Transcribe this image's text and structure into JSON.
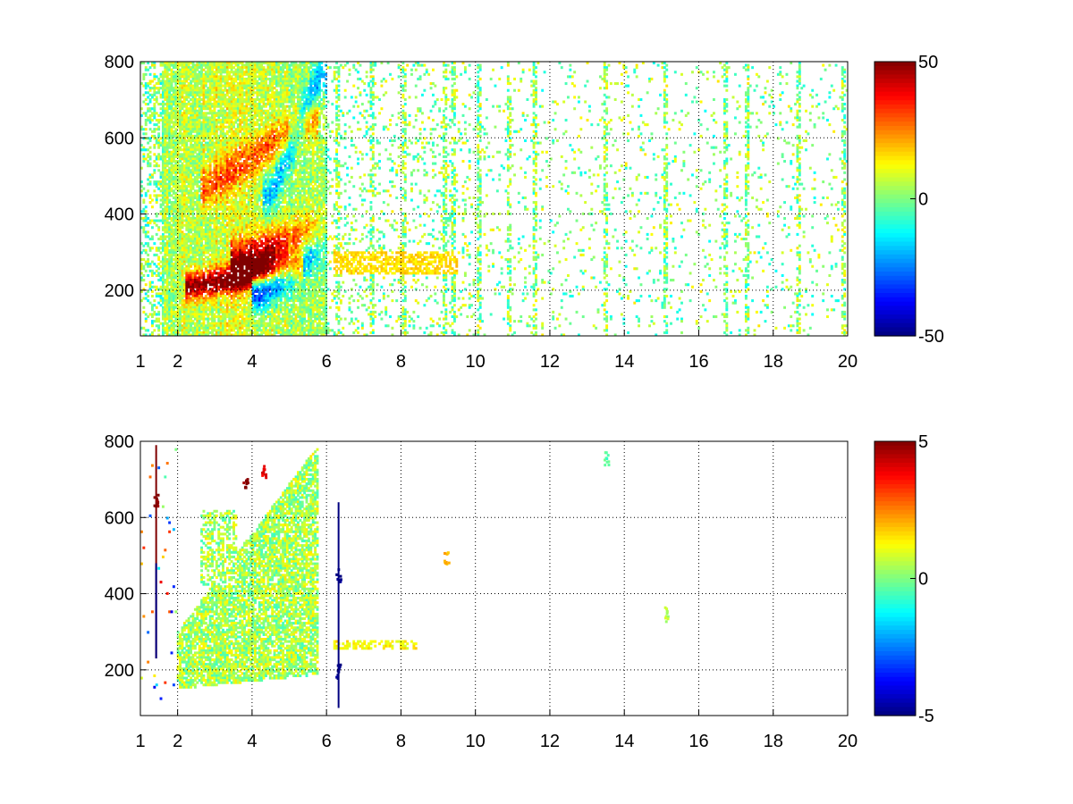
{
  "figure": {
    "background": "#ffffff"
  },
  "chart_data": [
    {
      "type": "heatmap",
      "title": "",
      "xlabel": "",
      "ylabel": "",
      "xlim": [
        1,
        20
      ],
      "ylim": [
        80,
        800
      ],
      "xticks": [
        1,
        2,
        4,
        6,
        8,
        10,
        12,
        14,
        16,
        18,
        20
      ],
      "yticks": [
        200,
        400,
        600,
        800
      ],
      "grid": true,
      "grid_style": "dotted",
      "colormap": "jet",
      "clim": [
        -50,
        50
      ],
      "colorbar": {
        "ticks": [
          50,
          0,
          -50
        ]
      },
      "features": [
        {
          "kind": "ridge",
          "x_start": 2.4,
          "x_end": 5.2,
          "y_start": 210,
          "y_end": 265,
          "value": 45,
          "spread": 25
        },
        {
          "kind": "ridge",
          "x_start": 3.6,
          "x_end": 5.8,
          "y_start": 270,
          "y_end": 340,
          "value": 40,
          "spread": 40
        },
        {
          "kind": "ridge",
          "x_start": 4.2,
          "x_end": 5.9,
          "y_start": 200,
          "y_end": 330,
          "value": -45,
          "spread": 40
        },
        {
          "kind": "ridge",
          "x_start": 2.8,
          "x_end": 5.6,
          "y_start": 470,
          "y_end": 650,
          "value": 22,
          "spread": 35
        },
        {
          "kind": "ridge",
          "x_start": 4.5,
          "x_end": 5.9,
          "y_start": 450,
          "y_end": 780,
          "value": -25,
          "spread": 40
        }
      ],
      "sparse_columns": [
        6.3,
        7.2,
        8.1,
        9.2,
        9.4,
        10.1,
        10.9,
        11.6,
        13.5,
        15.1,
        16.7,
        17.3,
        18.7,
        19.9
      ]
    },
    {
      "type": "heatmap",
      "title": "",
      "xlabel": "",
      "ylabel": "",
      "xlim": [
        1,
        20
      ],
      "ylim": [
        80,
        800
      ],
      "xticks": [
        1,
        2,
        4,
        6,
        8,
        10,
        12,
        14,
        16,
        18,
        20
      ],
      "yticks": [
        200,
        400,
        600,
        800
      ],
      "grid": true,
      "grid_style": "dotted",
      "colormap": "jet",
      "clim": [
        -5,
        5
      ],
      "colorbar": {
        "ticks": [
          5,
          0,
          -5
        ]
      },
      "features": [
        {
          "kind": "blob",
          "x_min": 2.0,
          "x_max": 5.8,
          "y_min": 150,
          "y_max": 790,
          "value": 0.4
        },
        {
          "kind": "spot",
          "x": 3.8,
          "y": 690,
          "value": 5
        },
        {
          "kind": "spot",
          "x": 4.3,
          "y": 720,
          "value": 4
        },
        {
          "kind": "spot",
          "x": 1.4,
          "y": 650,
          "value": 5
        },
        {
          "kind": "spot",
          "x": 6.3,
          "y": 200,
          "value": -5
        },
        {
          "kind": "spot",
          "x": 6.3,
          "y": 450,
          "value": -5
        },
        {
          "kind": "spot",
          "x": 9.2,
          "y": 500,
          "value": 2
        },
        {
          "kind": "spot",
          "x": 13.5,
          "y": 760,
          "value": -0.5
        },
        {
          "kind": "spot",
          "x": 15.1,
          "y": 350,
          "value": 0.5
        }
      ]
    }
  ]
}
